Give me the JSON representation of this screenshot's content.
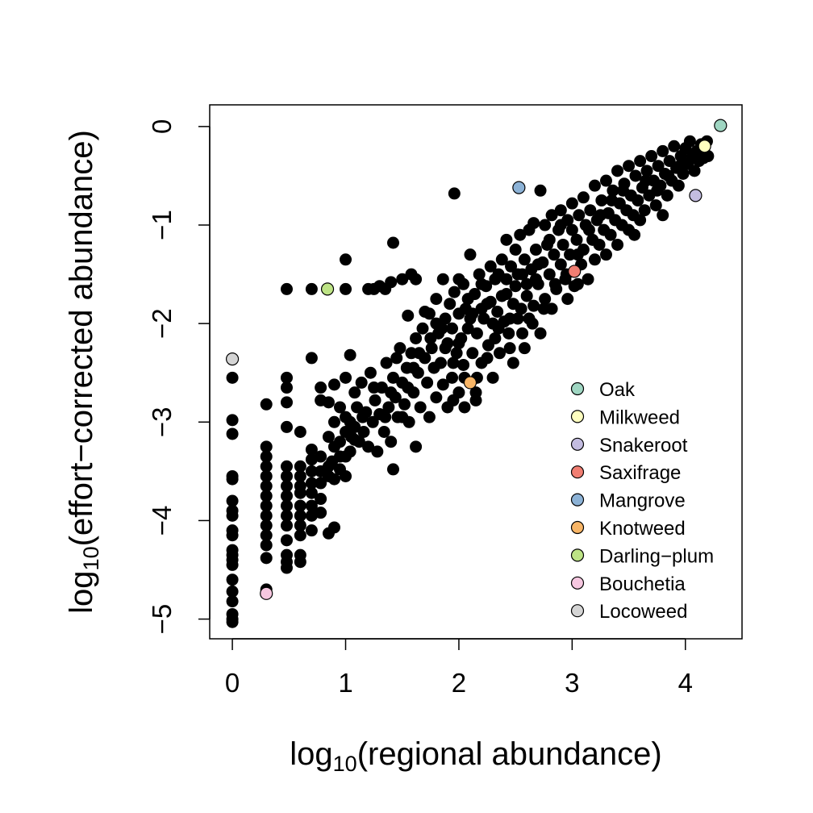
{
  "chart_data": {
    "type": "scatter",
    "xlabel": {
      "prefix": "log",
      "sub": "10",
      "rest": "(regional abundance)"
    },
    "ylabel": {
      "prefix": "log",
      "sub": "10",
      "rest": "(effort−corrected abundance)"
    },
    "xlim": [
      -0.2,
      4.5
    ],
    "ylim": [
      -5.2,
      0.22
    ],
    "xticks": [
      0,
      1,
      2,
      3,
      4
    ],
    "xtick_labels": [
      "0",
      "1",
      "2",
      "3",
      "4"
    ],
    "yticks": [
      0,
      -1,
      -2,
      -3,
      -4,
      -5
    ],
    "ytick_labels": [
      "0",
      "−1",
      "−2",
      "−3",
      "−4",
      "−5"
    ],
    "legend_position": "bottom-right",
    "highlighted": [
      {
        "name": "Oak",
        "color": "#9fd6c2",
        "x": 4.31,
        "y": 0.01
      },
      {
        "name": "Milkweed",
        "color": "#ffffc0",
        "x": 4.17,
        "y": -0.2
      },
      {
        "name": "Snakeroot",
        "color": "#c3bce0",
        "x": 4.09,
        "y": -0.7
      },
      {
        "name": "Saxifrage",
        "color": "#f07e72",
        "x": 3.02,
        "y": -1.47
      },
      {
        "name": "Mangrove",
        "color": "#8cb2d6",
        "x": 2.53,
        "y": -0.62
      },
      {
        "name": "Knotweed",
        "color": "#f8b566",
        "x": 2.1,
        "y": -2.6
      },
      {
        "name": "Darling−plum",
        "color": "#bde385",
        "x": 0.84,
        "y": -1.65
      },
      {
        "name": "Bouchetia",
        "color": "#f6c7e0",
        "x": 0.3,
        "y": -4.74
      },
      {
        "name": "Locoweed",
        "color": "#d4d4d4",
        "x": 0.0,
        "y": -2.36
      }
    ],
    "points": [
      [
        0,
        -2.55
      ],
      [
        0,
        -2.98
      ],
      [
        0,
        -3.12
      ],
      [
        0,
        -3.55
      ],
      [
        0,
        -3.58
      ],
      [
        0,
        -3.8
      ],
      [
        0,
        -3.9
      ],
      [
        0,
        -3.95
      ],
      [
        0,
        -4.1
      ],
      [
        0,
        -4.15
      ],
      [
        0,
        -4.3
      ],
      [
        0,
        -4.35
      ],
      [
        0,
        -4.4
      ],
      [
        0,
        -4.45
      ],
      [
        0,
        -4.6
      ],
      [
        0,
        -4.72
      ],
      [
        0,
        -4.82
      ],
      [
        0,
        -4.95
      ],
      [
        0,
        -5.0
      ],
      [
        0,
        -5.03
      ],
      [
        0.3,
        -3.25
      ],
      [
        0.3,
        -3.35
      ],
      [
        0.3,
        -3.45
      ],
      [
        0.3,
        -3.55
      ],
      [
        0.3,
        -3.65
      ],
      [
        0.3,
        -3.75
      ],
      [
        0.3,
        -3.85
      ],
      [
        0.3,
        -3.95
      ],
      [
        0.3,
        -4.05
      ],
      [
        0.3,
        -4.15
      ],
      [
        0.3,
        -4.25
      ],
      [
        0.3,
        -4.38
      ],
      [
        0.3,
        -4.7
      ],
      [
        0.3,
        -2.82
      ],
      [
        0.48,
        -2.55
      ],
      [
        0.48,
        -2.65
      ],
      [
        0.48,
        -2.8
      ],
      [
        0.48,
        -3.05
      ],
      [
        0.48,
        -3.45
      ],
      [
        0.48,
        -3.55
      ],
      [
        0.48,
        -3.65
      ],
      [
        0.48,
        -3.75
      ],
      [
        0.48,
        -3.85
      ],
      [
        0.48,
        -3.95
      ],
      [
        0.48,
        -4.05
      ],
      [
        0.48,
        -4.2
      ],
      [
        0.48,
        -4.35
      ],
      [
        0.48,
        -4.42
      ],
      [
        0.48,
        -4.48
      ],
      [
        0.48,
        -1.65
      ],
      [
        0.6,
        -3.1
      ],
      [
        0.6,
        -3.45
      ],
      [
        0.6,
        -3.55
      ],
      [
        0.6,
        -3.65
      ],
      [
        0.6,
        -3.72
      ],
      [
        0.6,
        -3.85
      ],
      [
        0.6,
        -3.95
      ],
      [
        0.6,
        -4.05
      ],
      [
        0.6,
        -4.15
      ],
      [
        0.6,
        -4.35
      ],
      [
        0.6,
        -4.42
      ],
      [
        0.7,
        -1.65
      ],
      [
        0.7,
        -2.35
      ],
      [
        0.7,
        -3.28
      ],
      [
        0.7,
        -3.38
      ],
      [
        0.7,
        -3.5
      ],
      [
        0.7,
        -3.62
      ],
      [
        0.7,
        -3.72
      ],
      [
        0.7,
        -3.85
      ],
      [
        0.7,
        -3.95
      ],
      [
        0.7,
        -4.1
      ],
      [
        0.78,
        -2.65
      ],
      [
        0.78,
        -2.78
      ],
      [
        0.78,
        -3.35
      ],
      [
        0.78,
        -3.5
      ],
      [
        0.78,
        -3.62
      ],
      [
        0.78,
        -3.78
      ],
      [
        0.78,
        -3.92
      ],
      [
        0.85,
        -2.8
      ],
      [
        0.85,
        -3.15
      ],
      [
        0.85,
        -3.45
      ],
      [
        0.85,
        -3.55
      ],
      [
        0.85,
        -4.13
      ],
      [
        0.9,
        -2.62
      ],
      [
        0.9,
        -3.0
      ],
      [
        0.9,
        -3.25
      ],
      [
        0.9,
        -3.58
      ],
      [
        0.9,
        -4.07
      ],
      [
        0.95,
        -2.85
      ],
      [
        0.95,
        -3.2
      ],
      [
        0.95,
        -3.48
      ],
      [
        1.0,
        -1.35
      ],
      [
        1.0,
        -1.65
      ],
      [
        1.0,
        -2.55
      ],
      [
        1.0,
        -2.95
      ],
      [
        1.0,
        -3.1
      ],
      [
        1.0,
        -3.35
      ],
      [
        1.0,
        -3.55
      ],
      [
        1.04,
        -2.32
      ],
      [
        1.04,
        -3.0
      ],
      [
        1.04,
        -3.3
      ],
      [
        1.08,
        -2.7
      ],
      [
        1.08,
        -3.05
      ],
      [
        1.08,
        -3.18
      ],
      [
        1.1,
        -2.85
      ],
      [
        1.12,
        -3.2
      ],
      [
        1.14,
        -2.6
      ],
      [
        1.16,
        -3.1
      ],
      [
        1.18,
        -2.9
      ],
      [
        1.2,
        -3.25
      ],
      [
        1.22,
        -2.5
      ],
      [
        1.24,
        -3.0
      ],
      [
        1.26,
        -2.78
      ],
      [
        1.28,
        -3.3
      ],
      [
        1.2,
        -1.65
      ],
      [
        1.25,
        -1.65
      ],
      [
        1.3,
        -1.62
      ],
      [
        1.35,
        -1.65
      ],
      [
        1.4,
        -1.58
      ],
      [
        1.42,
        -1.18
      ],
      [
        1.5,
        -1.55
      ],
      [
        1.58,
        -1.5
      ],
      [
        1.62,
        -1.55
      ],
      [
        1.3,
        -2.92
      ],
      [
        1.32,
        -2.65
      ],
      [
        1.34,
        -3.1
      ],
      [
        1.36,
        -2.4
      ],
      [
        1.38,
        -2.85
      ],
      [
        1.4,
        -3.2
      ],
      [
        1.42,
        -2.55
      ],
      [
        1.42,
        -3.48
      ],
      [
        1.44,
        -2.75
      ],
      [
        1.46,
        -2.95
      ],
      [
        1.48,
        -2.25
      ],
      [
        1.5,
        -2.6
      ],
      [
        1.52,
        -2.82
      ],
      [
        1.54,
        -2.45
      ],
      [
        1.55,
        -1.92
      ],
      [
        1.56,
        -3.0
      ],
      [
        1.58,
        -2.3
      ],
      [
        1.6,
        -2.7
      ],
      [
        1.62,
        -2.15
      ],
      [
        1.62,
        -3.25
      ],
      [
        1.64,
        -2.5
      ],
      [
        1.66,
        -2.85
      ],
      [
        1.68,
        -2.05
      ],
      [
        1.7,
        -2.35
      ],
      [
        1.72,
        -2.6
      ],
      [
        1.74,
        -1.9
      ],
      [
        1.74,
        -2.95
      ],
      [
        1.76,
        -2.25
      ],
      [
        1.78,
        -2.45
      ],
      [
        1.8,
        -1.75
      ],
      [
        1.8,
        -2.75
      ],
      [
        1.82,
        -2.1
      ],
      [
        1.84,
        -2.4
      ],
      [
        1.86,
        -1.55
      ],
      [
        1.86,
        -2.62
      ],
      [
        1.88,
        -1.95
      ],
      [
        1.9,
        -2.2
      ],
      [
        1.9,
        -2.85
      ],
      [
        1.92,
        -1.8
      ],
      [
        1.94,
        -2.05
      ],
      [
        1.94,
        -2.55
      ],
      [
        1.96,
        -0.68
      ],
      [
        1.96,
        -1.68
      ],
      [
        1.98,
        -2.3
      ],
      [
        2.0,
        -1.9
      ],
      [
        2.0,
        -2.7
      ],
      [
        2.02,
        -2.15
      ],
      [
        2.04,
        -1.6
      ],
      [
        2.04,
        -2.42
      ],
      [
        2.06,
        -1.85
      ],
      [
        2.08,
        -2.05
      ],
      [
        2.1,
        -1.3
      ],
      [
        2.1,
        -1.95
      ],
      [
        2.12,
        -2.3
      ],
      [
        2.14,
        -1.7
      ],
      [
        2.16,
        -2.1
      ],
      [
        2.16,
        -2.55
      ],
      [
        2.18,
        -1.5
      ],
      [
        2.2,
        -1.85
      ],
      [
        2.2,
        -2.4
      ],
      [
        2.22,
        -1.95
      ],
      [
        2.24,
        -1.62
      ],
      [
        2.26,
        -2.22
      ],
      [
        2.28,
        -1.42
      ],
      [
        2.28,
        -1.78
      ],
      [
        2.3,
        -2.0
      ],
      [
        2.3,
        -2.55
      ],
      [
        2.32,
        -1.55
      ],
      [
        2.34,
        -1.88
      ],
      [
        2.36,
        -2.3
      ],
      [
        2.38,
        -1.35
      ],
      [
        2.38,
        -1.72
      ],
      [
        2.4,
        -1.98
      ],
      [
        2.42,
        -1.15
      ],
      [
        2.42,
        -1.55
      ],
      [
        2.44,
        -2.1
      ],
      [
        2.46,
        -1.42
      ],
      [
        2.48,
        -1.8
      ],
      [
        2.48,
        -2.4
      ],
      [
        2.5,
        -1.25
      ],
      [
        2.5,
        -1.62
      ],
      [
        2.52,
        -1.95
      ],
      [
        2.54,
        -1.1
      ],
      [
        2.56,
        -1.5
      ],
      [
        2.56,
        -2.1
      ],
      [
        2.58,
        -1.35
      ],
      [
        2.6,
        -1.72
      ],
      [
        2.62,
        -1.05
      ],
      [
        2.62,
        -1.95
      ],
      [
        2.64,
        -1.45
      ],
      [
        2.66,
        -0.98
      ],
      [
        2.66,
        -1.82
      ],
      [
        2.68,
        -1.25
      ],
      [
        2.7,
        -1.6
      ],
      [
        2.72,
        -2.1
      ],
      [
        2.72,
        -0.65
      ],
      [
        2.74,
        -1.38
      ],
      [
        2.76,
        -1.0
      ],
      [
        2.76,
        -1.75
      ],
      [
        2.78,
        -1.2
      ],
      [
        2.8,
        -1.5
      ],
      [
        2.82,
        -0.9
      ],
      [
        2.82,
        -1.85
      ],
      [
        2.84,
        -1.3
      ],
      [
        2.86,
        -1.65
      ],
      [
        2.88,
        -1.05
      ],
      [
        2.9,
        -1.4
      ],
      [
        2.9,
        -0.85
      ],
      [
        2.92,
        -1.2
      ],
      [
        2.94,
        -1.55
      ],
      [
        2.96,
        -0.95
      ],
      [
        2.96,
        -1.75
      ],
      [
        2.98,
        -1.3
      ],
      [
        3.0,
        -1.05
      ],
      [
        3.0,
        -0.78
      ],
      [
        3.02,
        -1.62
      ],
      [
        3.04,
        -1.15
      ],
      [
        3.06,
        -0.9
      ],
      [
        3.08,
        -1.4
      ],
      [
        3.1,
        -0.72
      ],
      [
        3.1,
        -1.25
      ],
      [
        3.12,
        -1.0
      ],
      [
        3.14,
        -1.55
      ],
      [
        3.16,
        -0.85
      ],
      [
        3.18,
        -1.15
      ],
      [
        3.2,
        -0.6
      ],
      [
        3.2,
        -1.35
      ],
      [
        3.22,
        -0.95
      ],
      [
        3.24,
        -1.2
      ],
      [
        3.26,
        -0.75
      ],
      [
        3.28,
        -1.05
      ],
      [
        3.3,
        -0.55
      ],
      [
        3.3,
        -1.3
      ],
      [
        3.32,
        -0.88
      ],
      [
        3.34,
        -1.1
      ],
      [
        3.36,
        -0.65
      ],
      [
        3.38,
        -0.95
      ],
      [
        3.4,
        -0.45
      ],
      [
        3.4,
        -1.2
      ],
      [
        3.42,
        -0.78
      ],
      [
        3.44,
        -1.0
      ],
      [
        3.46,
        -0.58
      ],
      [
        3.48,
        -0.85
      ],
      [
        3.5,
        -0.4
      ],
      [
        3.5,
        -1.05
      ],
      [
        3.52,
        -0.7
      ],
      [
        3.54,
        -0.9
      ],
      [
        3.56,
        -0.5
      ],
      [
        3.58,
        -0.75
      ],
      [
        3.6,
        -0.35
      ],
      [
        3.6,
        -0.95
      ],
      [
        3.62,
        -0.62
      ],
      [
        3.64,
        -0.85
      ],
      [
        3.66,
        -0.45
      ],
      [
        3.68,
        -0.7
      ],
      [
        3.7,
        -0.3
      ],
      [
        3.72,
        -0.55
      ],
      [
        3.74,
        -0.8
      ],
      [
        3.76,
        -0.4
      ],
      [
        3.78,
        -0.6
      ],
      [
        3.8,
        -0.25
      ],
      [
        3.8,
        -0.9
      ],
      [
        3.82,
        -0.48
      ],
      [
        3.84,
        -0.7
      ],
      [
        3.86,
        -0.35
      ],
      [
        3.88,
        -0.55
      ],
      [
        3.9,
        -0.2
      ],
      [
        3.92,
        -0.42
      ],
      [
        3.94,
        -0.6
      ],
      [
        3.96,
        -0.3
      ],
      [
        3.98,
        -0.48
      ],
      [
        4.0,
        -0.22
      ],
      [
        4.02,
        -0.38
      ],
      [
        4.04,
        -0.15
      ],
      [
        4.06,
        -0.3
      ],
      [
        4.08,
        -0.45
      ],
      [
        4.1,
        -0.25
      ],
      [
        4.12,
        -0.35
      ],
      [
        4.14,
        -0.18
      ],
      [
        4.16,
        -0.32
      ],
      [
        4.19,
        -0.15
      ],
      [
        4.2,
        -0.3
      ],
      [
        2.0,
        -1.55
      ],
      [
        2.08,
        -1.75
      ],
      [
        2.2,
        -1.6
      ],
      [
        2.35,
        -1.5
      ],
      [
        2.45,
        -1.95
      ],
      [
        2.6,
        -1.6
      ],
      [
        2.7,
        -1.4
      ],
      [
        2.8,
        -1.15
      ],
      [
        2.9,
        -1.0
      ],
      [
        3.05,
        -1.3
      ],
      [
        3.15,
        -1.05
      ],
      [
        3.25,
        -0.9
      ],
      [
        1.85,
        -2.05
      ],
      [
        1.95,
        -2.4
      ],
      [
        2.05,
        -2.55
      ],
      [
        2.15,
        -2.7
      ],
      [
        1.75,
        -2.15
      ],
      [
        1.65,
        -2.3
      ],
      [
        1.55,
        -2.65
      ],
      [
        1.45,
        -2.35
      ],
      [
        2.25,
        -2.35
      ],
      [
        2.35,
        -2.05
      ],
      [
        2.45,
        -2.25
      ],
      [
        2.55,
        -1.85
      ],
      [
        2.65,
        -2.0
      ],
      [
        2.75,
        -1.85
      ],
      [
        2.85,
        -1.6
      ],
      [
        2.95,
        -1.5
      ],
      [
        3.05,
        -1.6
      ],
      [
        3.35,
        -0.75
      ],
      [
        3.45,
        -0.65
      ],
      [
        3.55,
        -1.1
      ],
      [
        3.65,
        -0.55
      ],
      [
        3.75,
        -0.65
      ],
      [
        3.85,
        -0.5
      ],
      [
        3.95,
        -0.4
      ],
      [
        2.15,
        -2.78
      ],
      [
        2.05,
        -2.85
      ],
      [
        1.95,
        -2.78
      ],
      [
        2.0,
        -2.2
      ],
      [
        1.88,
        -2.25
      ],
      [
        2.12,
        -1.9
      ],
      [
        2.25,
        -1.8
      ],
      [
        2.32,
        -2.15
      ],
      [
        2.42,
        -1.7
      ],
      [
        2.52,
        -1.5
      ],
      [
        2.58,
        -2.25
      ],
      [
        2.68,
        -1.55
      ],
      [
        1.7,
        -1.88
      ],
      [
        1.8,
        -2.0
      ],
      [
        1.6,
        -2.45
      ],
      [
        1.5,
        -2.95
      ],
      [
        1.4,
        -2.7
      ],
      [
        1.35,
        -2.95
      ],
      [
        1.25,
        -2.65
      ],
      [
        1.15,
        -2.95
      ],
      [
        1.05,
        -3.15
      ],
      [
        0.95,
        -3.35
      ],
      [
        0.88,
        -3.4
      ]
    ]
  }
}
